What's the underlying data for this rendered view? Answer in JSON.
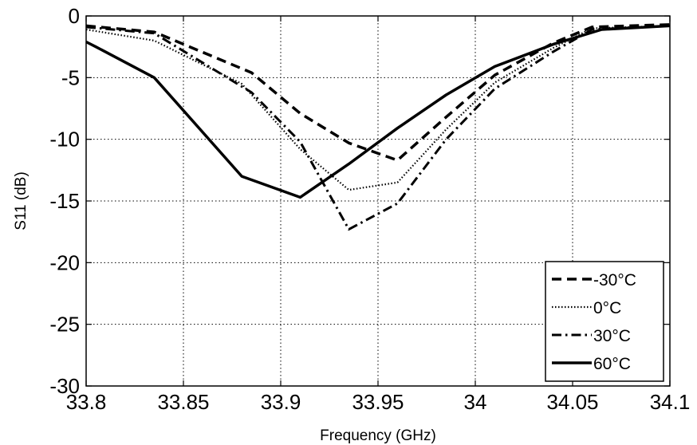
{
  "chart_data": {
    "type": "line",
    "title": "",
    "xlabel": "Frequency (GHz)",
    "ylabel": "S11 (dB)",
    "xlim": [
      33.8,
      34.1
    ],
    "ylim": [
      -30,
      0
    ],
    "xticks": [
      33.8,
      33.85,
      33.9,
      33.95,
      34,
      34.05,
      34.1
    ],
    "xtick_labels": [
      "33.8",
      "33.85",
      "33.9",
      "33.95",
      "34",
      "34.05",
      "34.1"
    ],
    "yticks": [
      0,
      -5,
      -10,
      -15,
      -20,
      -25,
      -30
    ],
    "ytick_labels": [
      "0",
      "-5",
      "-10",
      "-15",
      "-20",
      "-25",
      "-30"
    ],
    "grid": true,
    "legend_position": "bottom-right",
    "series": [
      {
        "name": "-30°C",
        "style": "dashed",
        "x": [
          33.8,
          33.835,
          33.885,
          33.91,
          33.935,
          33.96,
          33.985,
          34.01,
          34.04,
          34.06,
          34.1
        ],
        "y": [
          -0.8,
          -1.3,
          -4.6,
          -7.9,
          -10.3,
          -11.7,
          -8.2,
          -4.8,
          -2.2,
          -0.9,
          -0.7
        ]
      },
      {
        "name": "0°C",
        "style": "dotted",
        "x": [
          33.8,
          33.835,
          33.88,
          33.91,
          33.935,
          33.96,
          33.985,
          34.01,
          34.04,
          34.06,
          34.1
        ],
        "y": [
          -1.1,
          -2.0,
          -5.5,
          -10.8,
          -14.1,
          -13.5,
          -9.2,
          -5.4,
          -2.6,
          -1.0,
          -0.8
        ]
      },
      {
        "name": "30°C",
        "style": "dashdot",
        "x": [
          33.8,
          33.835,
          33.885,
          33.91,
          33.935,
          33.96,
          33.985,
          34.01,
          34.04,
          34.06,
          34.1
        ],
        "y": [
          -0.9,
          -1.4,
          -6.2,
          -10.2,
          -17.3,
          -15.2,
          -10.0,
          -5.9,
          -2.9,
          -1.1,
          -0.8
        ]
      },
      {
        "name": "60°C",
        "style": "solid",
        "x": [
          33.8,
          33.805,
          33.835,
          33.88,
          33.91,
          33.935,
          33.96,
          33.985,
          34.01,
          34.04,
          34.065,
          34.1
        ],
        "y": [
          -2.1,
          -2.5,
          -5.0,
          -13.0,
          -14.7,
          -12.0,
          -9.1,
          -6.4,
          -4.1,
          -2.3,
          -1.1,
          -0.8
        ]
      }
    ]
  }
}
